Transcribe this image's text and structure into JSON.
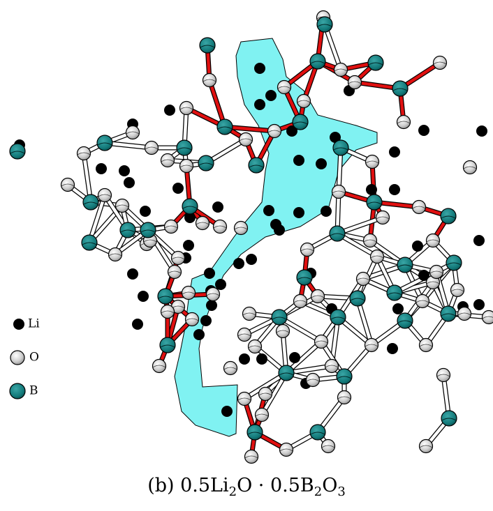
{
  "legend": [
    "Li",
    "O",
    "B"
  ],
  "caption": [
    "(b) 0.5Li",
    "2",
    "O · 0.5B",
    "2",
    "O",
    "3"
  ]
}
